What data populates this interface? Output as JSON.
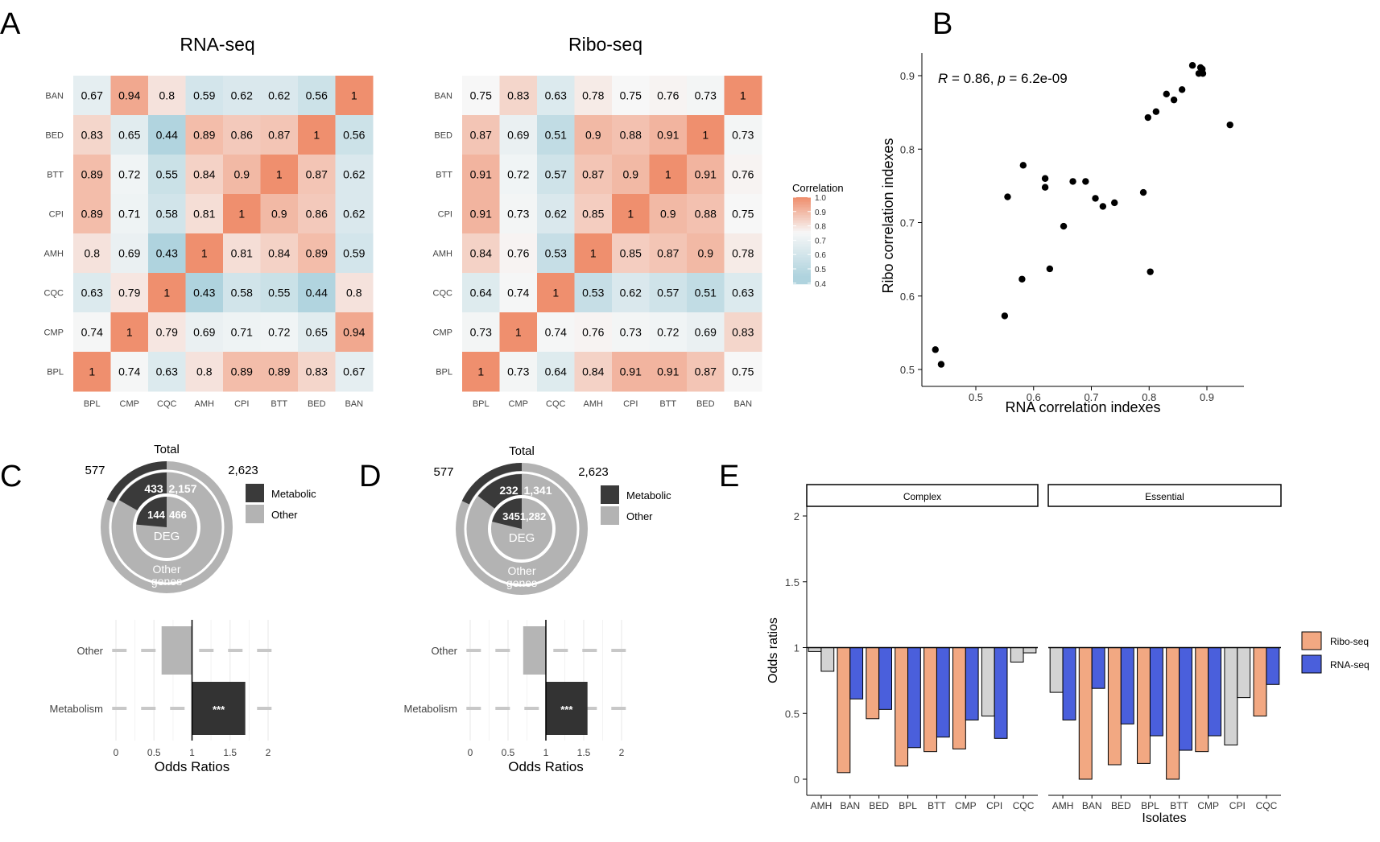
{
  "panel_labels": [
    "A",
    "B",
    "C",
    "D",
    "E"
  ],
  "chart_data": [
    {
      "panel": "A",
      "type": "heatmap",
      "title": "RNA-seq",
      "x_labels": [
        "BPL",
        "CMP",
        "CQC",
        "AMH",
        "CPI",
        "BTT",
        "BED",
        "BAN"
      ],
      "y_labels": [
        "BAN",
        "BED",
        "BTT",
        "CPI",
        "AMH",
        "CQC",
        "CMP",
        "BPL"
      ],
      "values": [
        [
          0.67,
          0.94,
          0.8,
          0.59,
          0.62,
          0.62,
          0.56,
          1
        ],
        [
          0.83,
          0.65,
          0.44,
          0.89,
          0.86,
          0.87,
          1,
          0.56
        ],
        [
          0.89,
          0.72,
          0.55,
          0.84,
          0.9,
          1,
          0.87,
          0.62
        ],
        [
          0.89,
          0.71,
          0.58,
          0.81,
          1,
          0.9,
          0.86,
          0.62
        ],
        [
          0.8,
          0.69,
          0.43,
          1,
          0.81,
          0.84,
          0.89,
          0.59
        ],
        [
          0.63,
          0.79,
          1,
          0.43,
          0.58,
          0.55,
          0.44,
          0.8
        ],
        [
          0.74,
          1,
          0.79,
          0.69,
          0.71,
          0.72,
          0.65,
          0.94
        ],
        [
          1,
          0.74,
          0.63,
          0.8,
          0.89,
          0.89,
          0.83,
          0.67
        ]
      ]
    },
    {
      "panel": "A",
      "type": "heatmap",
      "title": "Ribo-seq",
      "x_labels": [
        "BPL",
        "CMP",
        "CQC",
        "AMH",
        "CPI",
        "BTT",
        "BED",
        "BAN"
      ],
      "y_labels": [
        "BAN",
        "BED",
        "BTT",
        "CPI",
        "AMH",
        "CQC",
        "CMP",
        "BPL"
      ],
      "values": [
        [
          0.75,
          0.83,
          0.63,
          0.78,
          0.75,
          0.76,
          0.73,
          1
        ],
        [
          0.87,
          0.69,
          0.51,
          0.9,
          0.88,
          0.91,
          1,
          0.73
        ],
        [
          0.91,
          0.72,
          0.57,
          0.87,
          0.9,
          1,
          0.91,
          0.76
        ],
        [
          0.91,
          0.73,
          0.62,
          0.85,
          1,
          0.9,
          0.88,
          0.75
        ],
        [
          0.84,
          0.76,
          0.53,
          1,
          0.85,
          0.87,
          0.9,
          0.78
        ],
        [
          0.64,
          0.74,
          1,
          0.53,
          0.62,
          0.57,
          0.51,
          0.63
        ],
        [
          0.73,
          1,
          0.74,
          0.76,
          0.73,
          0.72,
          0.69,
          0.83
        ],
        [
          1,
          0.73,
          0.64,
          0.84,
          0.91,
          0.91,
          0.87,
          0.75
        ]
      ]
    },
    {
      "panel": "A",
      "type": "legend",
      "title": "Correlation",
      "ticks": [
        "1.0",
        "0.9",
        "0.8",
        "0.7",
        "0.6",
        "0.5",
        "0.4"
      ],
      "colors": {
        "high": "#EF8F6E",
        "mid": "#F7F7F7",
        "low": "#AFD3DE"
      }
    },
    {
      "panel": "B",
      "type": "scatter",
      "annotation": {
        "r_label": "R",
        "r_rest": " = 0.86, ",
        "p_label": "p",
        "p_rest": " = 6.2e-09"
      },
      "xlabel": "RNA correlation indexes",
      "ylabel": "Ribo correlation indexes",
      "xlim": [
        0.42,
        0.95
      ],
      "ylim": [
        0.49,
        0.93
      ],
      "xticks": [
        "0.5",
        "0.6",
        "0.7",
        "0.8",
        "0.9"
      ],
      "yticks": [
        "0.5",
        "0.6",
        "0.7",
        "0.8",
        "0.9"
      ],
      "points": [
        [
          0.43,
          0.527
        ],
        [
          0.44,
          0.507
        ],
        [
          0.55,
          0.573
        ],
        [
          0.555,
          0.735
        ],
        [
          0.58,
          0.623
        ],
        [
          0.582,
          0.778
        ],
        [
          0.62,
          0.748
        ],
        [
          0.62,
          0.76
        ],
        [
          0.628,
          0.637
        ],
        [
          0.652,
          0.695
        ],
        [
          0.668,
          0.756
        ],
        [
          0.69,
          0.756
        ],
        [
          0.707,
          0.733
        ],
        [
          0.72,
          0.722
        ],
        [
          0.74,
          0.727
        ],
        [
          0.79,
          0.741
        ],
        [
          0.798,
          0.843
        ],
        [
          0.802,
          0.633
        ],
        [
          0.812,
          0.851
        ],
        [
          0.83,
          0.875
        ],
        [
          0.843,
          0.867
        ],
        [
          0.857,
          0.881
        ],
        [
          0.875,
          0.914
        ],
        [
          0.886,
          0.903
        ],
        [
          0.889,
          0.911
        ],
        [
          0.892,
          0.909
        ],
        [
          0.893,
          0.903
        ],
        [
          0.94,
          0.833
        ]
      ]
    },
    {
      "panel": "C",
      "type": "pie",
      "top_label": "Total",
      "outer": {
        "metabolic": 577,
        "other": 2623,
        "metabolic_label": "577",
        "other_label": "2,623"
      },
      "middle": {
        "metabolic": 433,
        "other": 2157,
        "metabolic_label": "433",
        "other_label": "2,157"
      },
      "inner": {
        "metabolic": 144,
        "other": 466,
        "metabolic_label": "144",
        "other_label": "466"
      },
      "center_label": "DEG",
      "other_genes_label": [
        "Other",
        "genes"
      ],
      "legend": [
        "Metabolic",
        "Other"
      ]
    },
    {
      "panel": "C",
      "type": "bar",
      "categories": [
        "Other",
        "Metabolism"
      ],
      "values": [
        0.6,
        1.7
      ],
      "significance": [
        "",
        "***"
      ],
      "xlabel": "Odds Ratios",
      "xticks": [
        "0",
        "0.5",
        "1",
        "1.5",
        "2"
      ],
      "xlim": [
        0,
        2.2
      ]
    },
    {
      "panel": "D",
      "type": "pie",
      "top_label": "Total",
      "outer": {
        "metabolic": 577,
        "other": 2623,
        "metabolic_label": "577",
        "other_label": "2,623"
      },
      "middle": {
        "metabolic": 232,
        "other": 1341,
        "metabolic_label": "232",
        "other_label": "1,341"
      },
      "inner": {
        "metabolic": 345,
        "other": 1282,
        "metabolic_label": "345",
        "other_label": "1,282"
      },
      "center_label": "DEG",
      "other_genes_label": [
        "Other",
        "genes"
      ],
      "legend": [
        "Metabolic",
        "Other"
      ]
    },
    {
      "panel": "D",
      "type": "bar",
      "categories": [
        "Other",
        "Metabolism"
      ],
      "values": [
        0.7,
        1.55
      ],
      "significance": [
        "",
        "***"
      ],
      "xlabel": "Odds Ratios",
      "xticks": [
        "0",
        "0.5",
        "1",
        "1.5",
        "2"
      ],
      "xlim": [
        0,
        2.2
      ]
    },
    {
      "panel": "E",
      "type": "bar",
      "facets": [
        "Complex",
        "Essential"
      ],
      "categories": [
        "AMH",
        "BAN",
        "BED",
        "BPL",
        "BTT",
        "CMP",
        "CPI",
        "CQC"
      ],
      "xlabel": "Isolates",
      "ylabel": "Odds ratios",
      "yticks": [
        "0",
        "0.5",
        "1",
        "1.5",
        "2"
      ],
      "ylim": [
        -0.05,
        2.1
      ],
      "legend": [
        {
          "name": "Ribo-seq",
          "color": "#F2A882"
        },
        {
          "name": "RNA-seq",
          "color": "#4A5FDC"
        }
      ],
      "grey_color": "#D3D3D3",
      "series": {
        "Complex": {
          "Ribo-seq": [
            0.97,
            0.05,
            0.46,
            0.1,
            0.21,
            0.23,
            0.48,
            0.89
          ],
          "RNA-seq": [
            0.82,
            0.61,
            0.53,
            0.24,
            0.32,
            0.45,
            0.31,
            0.96
          ],
          "sig_ribo": [
            false,
            true,
            true,
            true,
            true,
            true,
            false,
            false
          ],
          "sig_rna": [
            false,
            true,
            true,
            true,
            true,
            true,
            true,
            false
          ]
        },
        "Essential": {
          "Ribo-seq": [
            0.66,
            0.0,
            0.11,
            0.12,
            0.0,
            0.21,
            0.26,
            0.48
          ],
          "RNA-seq": [
            0.45,
            0.69,
            0.42,
            0.33,
            0.22,
            0.33,
            0.62,
            0.72
          ],
          "sig_ribo": [
            false,
            true,
            true,
            true,
            true,
            true,
            false,
            true
          ],
          "sig_rna": [
            true,
            true,
            true,
            true,
            true,
            true,
            false,
            true
          ]
        }
      }
    }
  ]
}
